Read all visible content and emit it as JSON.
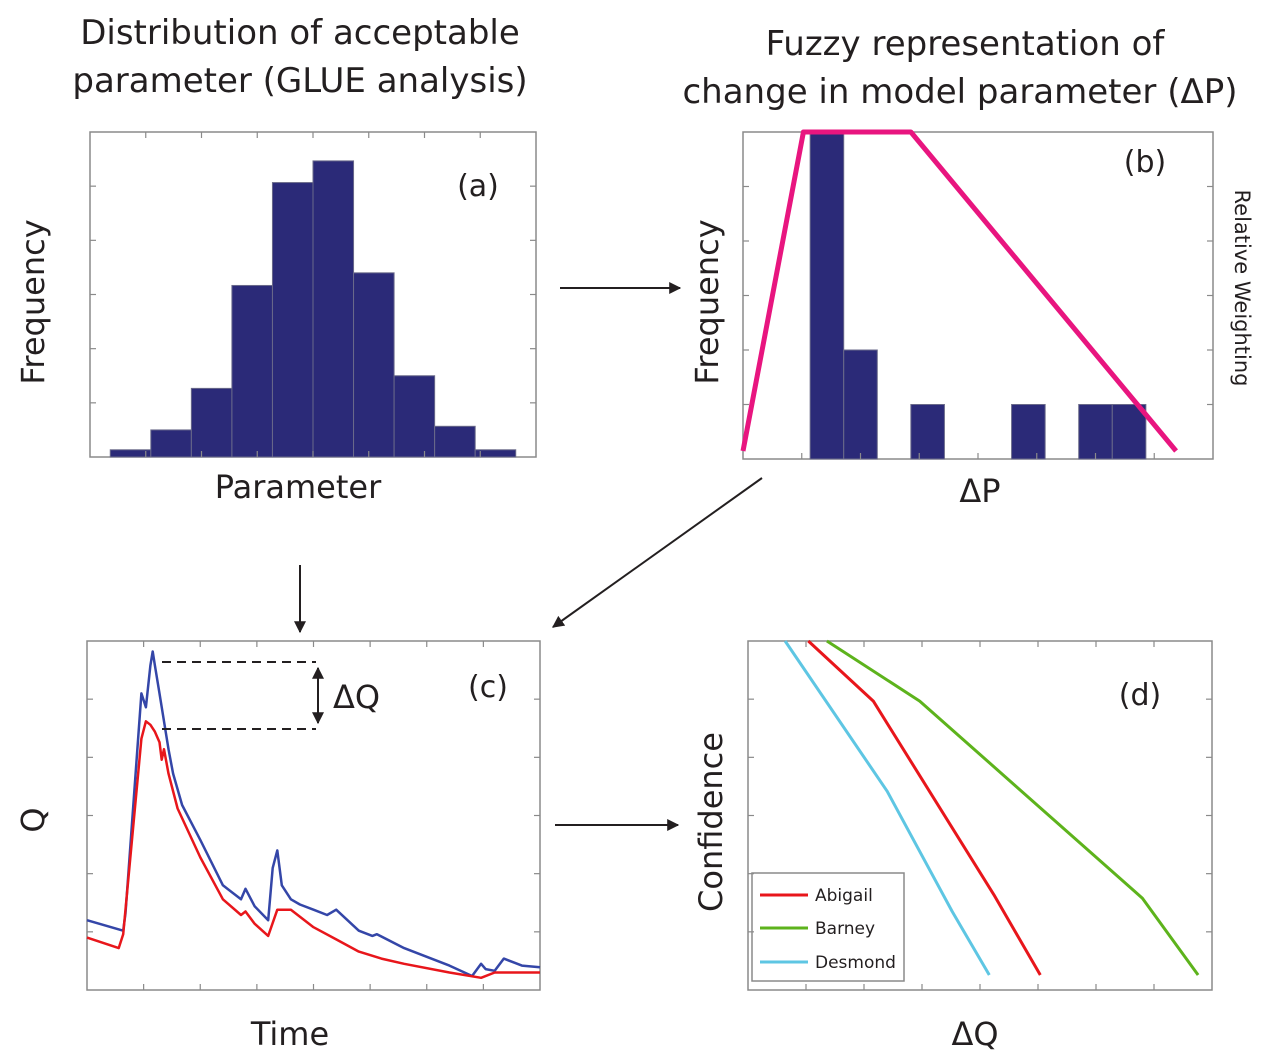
{
  "figure": {
    "title_a_line1": "Distribution of acceptable",
    "title_a_line2": "parameter (GLUE analysis)",
    "title_b_line1": "Fuzzy representation of",
    "title_b_line2": "change in model parameter (ΔP)"
  },
  "colors": {
    "bar": "#2b2a78",
    "fuzzy": "#e8157f",
    "upper": "#3446a8",
    "lower": "#e8161b",
    "Abigail": "#e8161b",
    "Barney": "#5db31c",
    "Desmond": "#5ec6e3",
    "axis": "#8a8a8a",
    "text": "#231f20"
  },
  "chart_data": [
    {
      "id": "a",
      "type": "bar",
      "panel_label": "(a)",
      "xlabel": "Parameter",
      "ylabel": "Frequency",
      "x": [
        1,
        2,
        3,
        4,
        5,
        6,
        7,
        8,
        9,
        10
      ],
      "values": [
        0.4,
        1.5,
        3.8,
        9.5,
        15.2,
        16.4,
        10.2,
        4.5,
        1.7,
        0.4
      ],
      "xlim": [
        0,
        11
      ],
      "ylim": [
        0,
        18
      ]
    },
    {
      "id": "b",
      "type": "bar",
      "panel_label": "(b)",
      "xlabel": "ΔP",
      "ylabel": "Frequency",
      "y2label": "Relative Weighting",
      "x": [
        3,
        4,
        5,
        6,
        7,
        8,
        9,
        10,
        11
      ],
      "values": [
        6,
        2,
        0,
        1,
        0,
        0,
        1,
        0,
        1
      ],
      "x_last": 12,
      "x_last_value": 1,
      "xlim": [
        0,
        14
      ],
      "ylim": [
        0,
        6
      ],
      "fuzzy_membership": {
        "x": [
          0,
          1.8,
          5,
          12.9
        ],
        "y": [
          0,
          1,
          1,
          0
        ]
      }
    },
    {
      "id": "c",
      "type": "line",
      "panel_label": "(c)",
      "xlabel": "Time",
      "ylabel": "Q",
      "annotation": "ΔQ",
      "xlim": [
        0,
        100
      ],
      "ylim": [
        0,
        10
      ],
      "series": [
        {
          "color_key": "upper",
          "x": [
            0,
            8,
            8.5,
            12,
            13,
            14,
            14.5,
            15,
            16,
            17,
            18,
            19,
            21,
            25,
            30,
            34,
            35,
            37,
            40,
            41,
            42,
            43,
            45,
            47,
            50,
            53,
            55,
            60,
            63,
            64,
            70,
            80,
            85,
            87,
            88,
            90,
            92,
            94,
            96,
            100
          ],
          "y": [
            2.0,
            1.7,
            2.2,
            8.5,
            8.1,
            9.3,
            9.7,
            9.3,
            8.5,
            7.7,
            6.9,
            6.2,
            5.3,
            4.3,
            3.0,
            2.6,
            2.9,
            2.4,
            2.0,
            3.5,
            4.0,
            3.0,
            2.6,
            2.45,
            2.3,
            2.15,
            2.3,
            1.7,
            1.55,
            1.6,
            1.2,
            0.7,
            0.4,
            0.75,
            0.6,
            0.55,
            0.9,
            0.8,
            0.7,
            0.65
          ]
        },
        {
          "color_key": "lower",
          "x": [
            0,
            7,
            8,
            12,
            13,
            14,
            15,
            16,
            16.5,
            17,
            18,
            20,
            25,
            30,
            34,
            35,
            37,
            40,
            42,
            45,
            50,
            55,
            60,
            65,
            70,
            80,
            87,
            90,
            100
          ],
          "y": [
            1.5,
            1.2,
            1.6,
            7.2,
            7.7,
            7.6,
            7.4,
            7.1,
            6.6,
            6.9,
            6.2,
            5.2,
            3.8,
            2.6,
            2.15,
            2.25,
            1.9,
            1.55,
            2.3,
            2.3,
            1.8,
            1.45,
            1.1,
            0.9,
            0.75,
            0.5,
            0.35,
            0.5,
            0.5
          ]
        }
      ]
    },
    {
      "id": "d",
      "type": "line",
      "panel_label": "(d)",
      "xlabel": "ΔQ",
      "ylabel": "Confidence",
      "xlim": [
        0,
        10
      ],
      "ylim": [
        0,
        10
      ],
      "series": [
        {
          "name": "Abigail",
          "color_key": "Abigail",
          "x": [
            1.3,
            2.7,
            5.3,
            6.3
          ],
          "y": [
            10,
            8.2,
            2.4,
            0
          ]
        },
        {
          "name": "Barney",
          "color_key": "Barney",
          "x": [
            1.7,
            3.7,
            8.5,
            9.7
          ],
          "y": [
            10,
            8.2,
            2.3,
            0
          ]
        },
        {
          "name": "Desmond",
          "color_key": "Desmond",
          "x": [
            0.8,
            3.0,
            4.4,
            5.2
          ],
          "y": [
            10,
            5.5,
            1.9,
            0
          ]
        }
      ]
    }
  ]
}
